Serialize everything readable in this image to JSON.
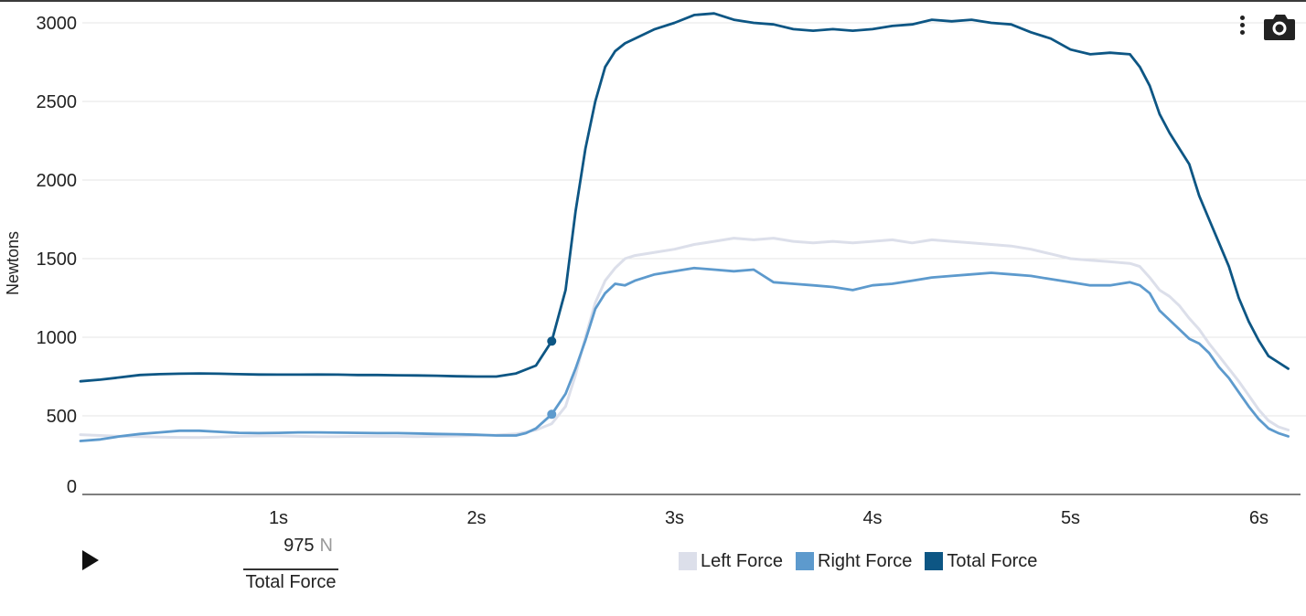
{
  "chart_data": {
    "type": "line",
    "ylabel": "Newtons",
    "xlabel": "",
    "xlim": [
      0,
      6
    ],
    "ylim": [
      0,
      3000
    ],
    "y_ticks": [
      0,
      500,
      1000,
      1500,
      2000,
      2500,
      3000
    ],
    "x_ticks": [
      {
        "value": 1,
        "label": "1s"
      },
      {
        "value": 2,
        "label": "2s"
      },
      {
        "value": 3,
        "label": "3s"
      },
      {
        "value": 4,
        "label": "4s"
      },
      {
        "value": 5,
        "label": "5s"
      },
      {
        "value": 6,
        "label": "6s"
      }
    ],
    "grid": true,
    "legend_position": "bottom-center",
    "series": [
      {
        "name": "Left Force",
        "color": "#dcdfea",
        "points": [
          [
            0,
            380
          ],
          [
            0.1,
            375
          ],
          [
            0.2,
            370
          ],
          [
            0.3,
            368
          ],
          [
            0.4,
            365
          ],
          [
            0.5,
            363
          ],
          [
            0.6,
            362
          ],
          [
            0.7,
            365
          ],
          [
            0.8,
            370
          ],
          [
            0.9,
            372
          ],
          [
            1.0,
            372
          ],
          [
            1.1,
            370
          ],
          [
            1.2,
            368
          ],
          [
            1.3,
            368
          ],
          [
            1.4,
            370
          ],
          [
            1.5,
            370
          ],
          [
            1.6,
            369
          ],
          [
            1.7,
            368
          ],
          [
            1.8,
            370
          ],
          [
            1.9,
            372
          ],
          [
            2.0,
            375
          ],
          [
            2.1,
            378
          ],
          [
            2.2,
            385
          ],
          [
            2.3,
            410
          ],
          [
            2.38,
            450
          ],
          [
            2.45,
            560
          ],
          [
            2.5,
            760
          ],
          [
            2.55,
            1000
          ],
          [
            2.6,
            1220
          ],
          [
            2.65,
            1360
          ],
          [
            2.7,
            1440
          ],
          [
            2.75,
            1500
          ],
          [
            2.8,
            1520
          ],
          [
            2.9,
            1540
          ],
          [
            3.0,
            1560
          ],
          [
            3.1,
            1590
          ],
          [
            3.2,
            1610
          ],
          [
            3.3,
            1630
          ],
          [
            3.4,
            1620
          ],
          [
            3.5,
            1630
          ],
          [
            3.6,
            1610
          ],
          [
            3.7,
            1600
          ],
          [
            3.8,
            1610
          ],
          [
            3.9,
            1600
          ],
          [
            4.0,
            1610
          ],
          [
            4.1,
            1620
          ],
          [
            4.2,
            1600
          ],
          [
            4.3,
            1620
          ],
          [
            4.4,
            1610
          ],
          [
            4.5,
            1600
          ],
          [
            4.6,
            1590
          ],
          [
            4.7,
            1580
          ],
          [
            4.8,
            1560
          ],
          [
            4.9,
            1530
          ],
          [
            5.0,
            1500
          ],
          [
            5.1,
            1490
          ],
          [
            5.2,
            1480
          ],
          [
            5.3,
            1470
          ],
          [
            5.35,
            1450
          ],
          [
            5.4,
            1380
          ],
          [
            5.45,
            1300
          ],
          [
            5.5,
            1260
          ],
          [
            5.55,
            1200
          ],
          [
            5.6,
            1120
          ],
          [
            5.65,
            1050
          ],
          [
            5.7,
            960
          ],
          [
            5.75,
            880
          ],
          [
            5.8,
            800
          ],
          [
            5.85,
            720
          ],
          [
            5.9,
            630
          ],
          [
            5.95,
            540
          ],
          [
            6.0,
            470
          ],
          [
            6.05,
            430
          ],
          [
            6.1,
            410
          ]
        ]
      },
      {
        "name": "Right Force",
        "color": "#5d9acd",
        "points": [
          [
            0,
            340
          ],
          [
            0.1,
            350
          ],
          [
            0.2,
            370
          ],
          [
            0.3,
            385
          ],
          [
            0.4,
            395
          ],
          [
            0.5,
            405
          ],
          [
            0.6,
            405
          ],
          [
            0.7,
            398
          ],
          [
            0.8,
            392
          ],
          [
            0.9,
            390
          ],
          [
            1.0,
            392
          ],
          [
            1.1,
            395
          ],
          [
            1.2,
            395
          ],
          [
            1.3,
            393
          ],
          [
            1.4,
            392
          ],
          [
            1.5,
            390
          ],
          [
            1.6,
            390
          ],
          [
            1.7,
            388
          ],
          [
            1.8,
            385
          ],
          [
            1.9,
            383
          ],
          [
            2.0,
            380
          ],
          [
            2.1,
            375
          ],
          [
            2.2,
            375
          ],
          [
            2.25,
            390
          ],
          [
            2.3,
            420
          ],
          [
            2.38,
            510
          ],
          [
            2.45,
            640
          ],
          [
            2.5,
            800
          ],
          [
            2.55,
            980
          ],
          [
            2.6,
            1180
          ],
          [
            2.65,
            1280
          ],
          [
            2.7,
            1340
          ],
          [
            2.75,
            1330
          ],
          [
            2.8,
            1360
          ],
          [
            2.9,
            1400
          ],
          [
            3.0,
            1420
          ],
          [
            3.1,
            1440
          ],
          [
            3.2,
            1430
          ],
          [
            3.3,
            1420
          ],
          [
            3.4,
            1430
          ],
          [
            3.5,
            1350
          ],
          [
            3.6,
            1340
          ],
          [
            3.7,
            1330
          ],
          [
            3.8,
            1320
          ],
          [
            3.9,
            1300
          ],
          [
            4.0,
            1330
          ],
          [
            4.1,
            1340
          ],
          [
            4.2,
            1360
          ],
          [
            4.3,
            1380
          ],
          [
            4.4,
            1390
          ],
          [
            4.5,
            1400
          ],
          [
            4.6,
            1410
          ],
          [
            4.7,
            1400
          ],
          [
            4.8,
            1390
          ],
          [
            4.9,
            1370
          ],
          [
            5.0,
            1350
          ],
          [
            5.1,
            1330
          ],
          [
            5.2,
            1330
          ],
          [
            5.3,
            1350
          ],
          [
            5.35,
            1330
          ],
          [
            5.4,
            1280
          ],
          [
            5.45,
            1170
          ],
          [
            5.5,
            1110
          ],
          [
            5.55,
            1050
          ],
          [
            5.6,
            990
          ],
          [
            5.65,
            960
          ],
          [
            5.7,
            900
          ],
          [
            5.75,
            810
          ],
          [
            5.8,
            740
          ],
          [
            5.85,
            650
          ],
          [
            5.9,
            560
          ],
          [
            5.95,
            480
          ],
          [
            6.0,
            420
          ],
          [
            6.05,
            390
          ],
          [
            6.1,
            370
          ]
        ]
      },
      {
        "name": "Total Force",
        "color": "#0d5684",
        "points": [
          [
            0,
            720
          ],
          [
            0.1,
            730
          ],
          [
            0.2,
            745
          ],
          [
            0.3,
            760
          ],
          [
            0.4,
            765
          ],
          [
            0.5,
            768
          ],
          [
            0.6,
            770
          ],
          [
            0.7,
            768
          ],
          [
            0.8,
            765
          ],
          [
            0.9,
            763
          ],
          [
            1.0,
            762
          ],
          [
            1.1,
            762
          ],
          [
            1.2,
            763
          ],
          [
            1.3,
            762
          ],
          [
            1.4,
            760
          ],
          [
            1.5,
            760
          ],
          [
            1.6,
            758
          ],
          [
            1.7,
            757
          ],
          [
            1.8,
            755
          ],
          [
            1.9,
            752
          ],
          [
            2.0,
            750
          ],
          [
            2.1,
            750
          ],
          [
            2.2,
            770
          ],
          [
            2.3,
            820
          ],
          [
            2.38,
            975
          ],
          [
            2.45,
            1300
          ],
          [
            2.5,
            1800
          ],
          [
            2.55,
            2200
          ],
          [
            2.6,
            2500
          ],
          [
            2.65,
            2720
          ],
          [
            2.7,
            2820
          ],
          [
            2.75,
            2870
          ],
          [
            2.8,
            2900
          ],
          [
            2.9,
            2960
          ],
          [
            3.0,
            3000
          ],
          [
            3.1,
            3050
          ],
          [
            3.2,
            3060
          ],
          [
            3.3,
            3020
          ],
          [
            3.4,
            3000
          ],
          [
            3.5,
            2990
          ],
          [
            3.6,
            2960
          ],
          [
            3.7,
            2950
          ],
          [
            3.8,
            2960
          ],
          [
            3.9,
            2950
          ],
          [
            4.0,
            2960
          ],
          [
            4.1,
            2980
          ],
          [
            4.2,
            2990
          ],
          [
            4.3,
            3020
          ],
          [
            4.4,
            3010
          ],
          [
            4.5,
            3020
          ],
          [
            4.6,
            3000
          ],
          [
            4.7,
            2990
          ],
          [
            4.8,
            2940
          ],
          [
            4.9,
            2900
          ],
          [
            5.0,
            2830
          ],
          [
            5.1,
            2800
          ],
          [
            5.2,
            2810
          ],
          [
            5.3,
            2800
          ],
          [
            5.35,
            2720
          ],
          [
            5.4,
            2600
          ],
          [
            5.45,
            2420
          ],
          [
            5.5,
            2300
          ],
          [
            5.55,
            2200
          ],
          [
            5.6,
            2100
          ],
          [
            5.65,
            1900
          ],
          [
            5.7,
            1750
          ],
          [
            5.75,
            1600
          ],
          [
            5.8,
            1450
          ],
          [
            5.85,
            1250
          ],
          [
            5.9,
            1100
          ],
          [
            5.95,
            980
          ],
          [
            6.0,
            880
          ],
          [
            6.05,
            840
          ],
          [
            6.1,
            800
          ]
        ]
      }
    ],
    "marker": {
      "x": 2.38,
      "points": [
        {
          "series": "Total Force",
          "y": 975
        },
        {
          "series": "Right Force",
          "y": 510
        }
      ]
    }
  },
  "readout": {
    "value": "975",
    "unit": "N",
    "label": "Total Force"
  },
  "legend": [
    {
      "label": "Left Force",
      "color": "#dcdfea"
    },
    {
      "label": "Right Force",
      "color": "#5d9acd"
    },
    {
      "label": "Total Force",
      "color": "#0d5684"
    }
  ],
  "icons": {
    "menu": "vertical-dots-icon",
    "camera": "camera-icon",
    "play": "play-icon"
  }
}
